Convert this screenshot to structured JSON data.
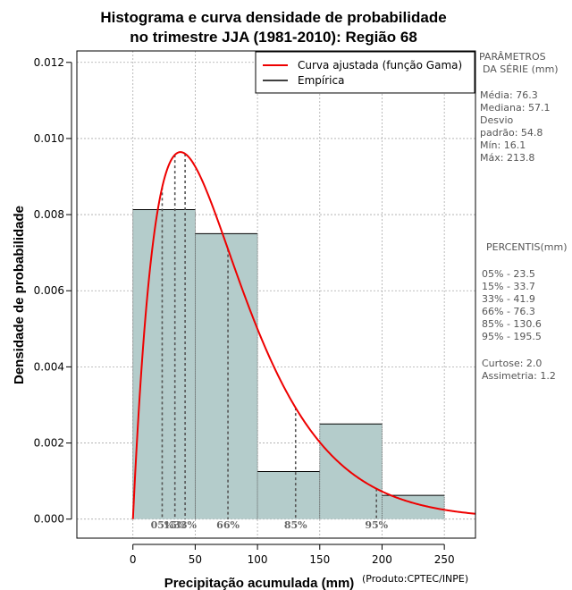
{
  "chart_data": {
    "type": "bar",
    "title_lines": [
      "Histograma e curva densidade de probabilidade",
      "no trimestre JJA (1981-2010): Região 68"
    ],
    "xlabel": "Precipitação acumulada (mm)",
    "ylabel": "Densidade de probabilidade",
    "credit": "(Produto:CPTEC/INPE)",
    "xlim": [
      -45,
      275
    ],
    "ylim": [
      -0.0005,
      0.0123
    ],
    "x_ticks": [
      0,
      50,
      100,
      150,
      200,
      250
    ],
    "x_tick_labels": [
      "0",
      "50",
      "100",
      "150",
      "200",
      "250"
    ],
    "y_ticks": [
      0,
      0.002,
      0.004,
      0.006,
      0.008,
      0.01,
      0.012
    ],
    "y_tick_labels": [
      "0.000",
      "0.002",
      "0.004",
      "0.006",
      "0.008",
      "0.010",
      "0.012"
    ],
    "grid": true,
    "bins": [
      {
        "from": 0,
        "to": 50,
        "density": 0.00813
      },
      {
        "from": 50,
        "to": 100,
        "density": 0.0075
      },
      {
        "from": 100,
        "to": 150,
        "density": 0.00125
      },
      {
        "from": 150,
        "to": 200,
        "density": 0.0025
      },
      {
        "from": 200,
        "to": 250,
        "density": 0.000625
      }
    ],
    "bar_color": "#b4cccb",
    "curve": {
      "name": "Curva ajustada (função Gama)",
      "color": "#ee0000",
      "shape": 2.0,
      "scale": 38.15,
      "x_from": 0,
      "x_to": 275
    },
    "percentiles": [
      {
        "label": "05%",
        "value": 23.5
      },
      {
        "label": "15%",
        "value": 33.7
      },
      {
        "label": "33%",
        "value": 41.9
      },
      {
        "label": "66%",
        "value": 76.3
      },
      {
        "label": "85%",
        "value": 130.6
      },
      {
        "label": "95%",
        "value": 195.5
      }
    ],
    "legend": [
      {
        "label": "Curva ajustada (função Gama)",
        "color": "#ee0000"
      },
      {
        "label": "Empírica",
        "color": "#000000"
      }
    ],
    "legend_position": "top-right"
  },
  "side_panel": {
    "params_title": [
      "PARÂMETROS",
      "DA SÉRIE (mm)"
    ],
    "params": [
      "Média:  76.3",
      "Mediana:  57.1",
      "Desvio",
      "padrão:  54.8",
      "Mín:  16.1",
      "Máx:  213.8"
    ],
    "percentis_title": "PERCENTIS(mm)",
    "percentis": [
      "05% -  23.5",
      "15% -  33.7",
      "33% -  41.9",
      "66% -  76.3",
      "85% -  130.6",
      "95% -  195.5"
    ],
    "stats": [
      "Curtose:  2.0",
      "Assimetria:  1.2"
    ]
  }
}
